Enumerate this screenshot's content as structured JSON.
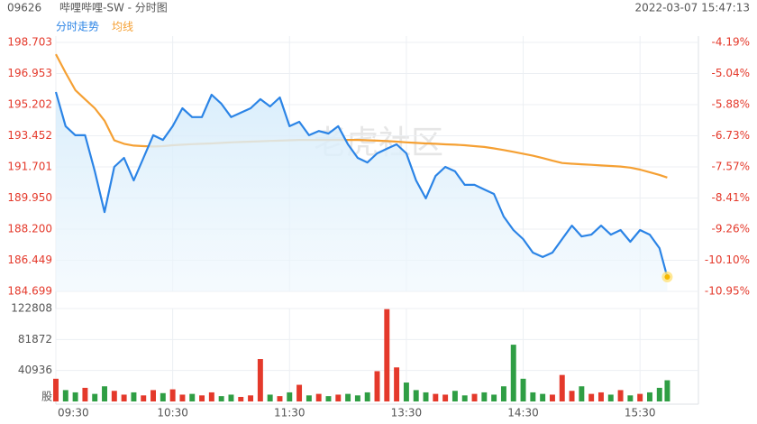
{
  "header": {
    "code": "09626",
    "name": "哔哩哔哩-SW - 分时图",
    "time": "2022-03-07 15:47:13"
  },
  "chart_data": {
    "type": "line",
    "watermark": "老虎社区",
    "x": [
      "09:30",
      "09:35",
      "09:40",
      "09:45",
      "09:50",
      "09:55",
      "10:00",
      "10:05",
      "10:10",
      "10:15",
      "10:20",
      "10:25",
      "10:30",
      "10:35",
      "10:40",
      "10:45",
      "10:50",
      "10:55",
      "11:00",
      "11:05",
      "11:10",
      "11:15",
      "11:20",
      "11:25",
      "11:30",
      "11:35",
      "11:40",
      "11:45",
      "11:50",
      "11:55",
      "13:00",
      "13:05",
      "13:10",
      "13:15",
      "13:20",
      "13:25",
      "13:30",
      "13:35",
      "13:40",
      "13:45",
      "13:50",
      "13:55",
      "14:00",
      "14:05",
      "14:10",
      "14:15",
      "14:20",
      "14:25",
      "14:30",
      "14:35",
      "14:40",
      "14:45",
      "14:50",
      "14:55",
      "15:00",
      "15:05",
      "15:10",
      "15:15",
      "15:20",
      "15:25",
      "15:30",
      "15:35",
      "15:40",
      "15:44"
    ],
    "series": [
      {
        "name": "分时走势",
        "color": "#2b84e6",
        "values": [
          195.91,
          193.99,
          193.48,
          193.48,
          191.45,
          189.16,
          191.7,
          192.21,
          190.94,
          192.21,
          193.48,
          193.22,
          193.99,
          195.0,
          194.5,
          194.5,
          195.76,
          195.25,
          194.5,
          194.75,
          195.0,
          195.51,
          195.1,
          195.61,
          193.99,
          194.24,
          193.48,
          193.72,
          193.58,
          193.99,
          192.97,
          192.21,
          191.95,
          192.46,
          192.72,
          192.97,
          192.46,
          190.94,
          189.93,
          191.19,
          191.7,
          191.45,
          190.69,
          190.69,
          190.43,
          190.18,
          188.91,
          188.15,
          187.64,
          186.88,
          186.63,
          186.88,
          187.64,
          188.4,
          187.79,
          187.89,
          188.4,
          187.89,
          188.15,
          187.49,
          188.15,
          187.89,
          187.13,
          185.51
        ]
      },
      {
        "name": "均线",
        "color": "#f5a033",
        "values": [
          198.04,
          197.0,
          196.02,
          195.5,
          195.0,
          194.3,
          193.2,
          193.0,
          192.9,
          192.87,
          192.85,
          192.87,
          192.92,
          192.95,
          192.98,
          193.0,
          193.02,
          193.05,
          193.08,
          193.1,
          193.12,
          193.14,
          193.16,
          193.18,
          193.2,
          193.22,
          193.22,
          193.22,
          193.22,
          193.22,
          193.22,
          193.22,
          193.2,
          193.18,
          193.15,
          193.12,
          193.08,
          193.05,
          193.02,
          193.0,
          192.97,
          192.95,
          192.92,
          192.87,
          192.82,
          192.74,
          192.65,
          192.55,
          192.44,
          192.33,
          192.2,
          192.05,
          191.92,
          191.88,
          191.85,
          191.82,
          191.78,
          191.75,
          191.72,
          191.66,
          191.55,
          191.4,
          191.25,
          191.1
        ]
      }
    ],
    "volume": {
      "unit": "股",
      "up_color": "#e4392b",
      "down_color": "#2f9e44",
      "values": [
        30000,
        15000,
        12000,
        18000,
        10000,
        20000,
        14000,
        9000,
        12000,
        8000,
        15000,
        11000,
        16000,
        9000,
        10000,
        8000,
        12000,
        7000,
        9000,
        6000,
        8000,
        56000,
        9000,
        7000,
        12000,
        22000,
        8000,
        10000,
        7000,
        9000,
        10000,
        8000,
        12000,
        40000,
        122000,
        45000,
        25000,
        15000,
        12000,
        10000,
        9000,
        14000,
        8000,
        10000,
        12000,
        9000,
        20000,
        75000,
        30000,
        12000,
        10000,
        9000,
        35000,
        14000,
        20000,
        10000,
        12000,
        9000,
        15000,
        8000,
        10000,
        12000,
        18000,
        28000
      ],
      "ylim": [
        0,
        122808
      ],
      "yticks": [
        40936,
        81872,
        122808
      ]
    },
    "ylim": [
      184.699,
      198.703
    ],
    "yticks": [
      184.699,
      186.449,
      {
        "value": 188.2,
        "label": "188.200"
      },
      {
        "value": 189.95,
        "label": "189.950"
      },
      191.701,
      193.452,
      195.202,
      196.953,
      198.703
    ],
    "y2lim": [
      -10.95,
      -4.19
    ],
    "y2ticks": [
      {
        "value": -10.95,
        "label": "-10.95%"
      },
      {
        "value": -10.1,
        "label": "-10.10%"
      },
      {
        "value": -9.26,
        "label": "-9.26%"
      },
      {
        "value": -8.41,
        "label": "-8.41%"
      },
      {
        "value": -7.57,
        "label": "-7.57%"
      },
      {
        "value": -6.73,
        "label": "-6.73%"
      },
      {
        "value": -5.88,
        "label": "-5.88%"
      },
      {
        "value": -5.04,
        "label": "-5.04%"
      },
      {
        "value": -4.19,
        "label": "-4.19%"
      }
    ],
    "xticks": [
      "09:30",
      "10:30",
      "11:30",
      "13:30",
      "14:30",
      "15:30"
    ],
    "grid": true
  }
}
